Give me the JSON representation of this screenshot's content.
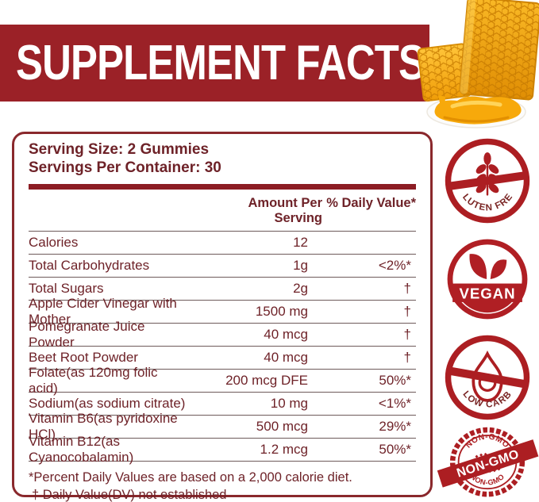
{
  "banner": {
    "title": "SUPPLEMENT FACTS"
  },
  "panel": {
    "serving_size": "Serving Size: 2 Gummies",
    "servings_per_container": "Servings Per Container: 30",
    "columns": {
      "amount": "Amount Per Serving",
      "daily_value": "% Daily Value*"
    },
    "rows": [
      {
        "name": "Calories",
        "amount": "12",
        "dv": ""
      },
      {
        "name": "Total Carbohydrates",
        "amount": "1g",
        "dv": "<2%*"
      },
      {
        "name": "Total Sugars",
        "amount": "2g",
        "dv": "†"
      },
      {
        "name": "Apple Cider Vinegar with Mother",
        "amount": "1500 mg",
        "dv": "†"
      },
      {
        "name": "Pomegranate Juice Powder",
        "amount": "40 mcg",
        "dv": "†"
      },
      {
        "name": "Beet Root Powder",
        "amount": "40 mcg",
        "dv": "†"
      },
      {
        "name": "Folate(as 120mg folic acid)",
        "amount": "200 mcg DFE",
        "dv": "50%*"
      },
      {
        "name": "Sodium(as sodium citrate)",
        "amount": "10 mg",
        "dv": "<1%*"
      },
      {
        "name": "Vitamin B6(as pyridoxine HCl)",
        "amount": "500 mcg",
        "dv": "29%*"
      },
      {
        "name": "Vitamin B12(as Cyanocobalamin)",
        "amount": "1.2 mcg",
        "dv": "50%*"
      }
    ],
    "footnotes": [
      "*Percent Daily Values are based on a 2,000 calorie diet.",
      "† Daily Value(DV) not established"
    ]
  },
  "badges": [
    {
      "name": "gluten-free",
      "label": "GLUTEN FREE"
    },
    {
      "name": "vegan",
      "label": "VEGAN"
    },
    {
      "name": "low-carb",
      "label": "LOW CARB"
    },
    {
      "name": "non-gmo",
      "arc_top": "NON-GMO",
      "ribbon": "NON-GMO",
      "arc_bottom": "NON-GMO"
    }
  ],
  "colors": {
    "banner_red": "#9B2127",
    "badge_red": "#AC1E22",
    "text_maroon": "#6E2228",
    "divider_red": "#8C1D24",
    "honey_gold": "#F5A70A"
  }
}
